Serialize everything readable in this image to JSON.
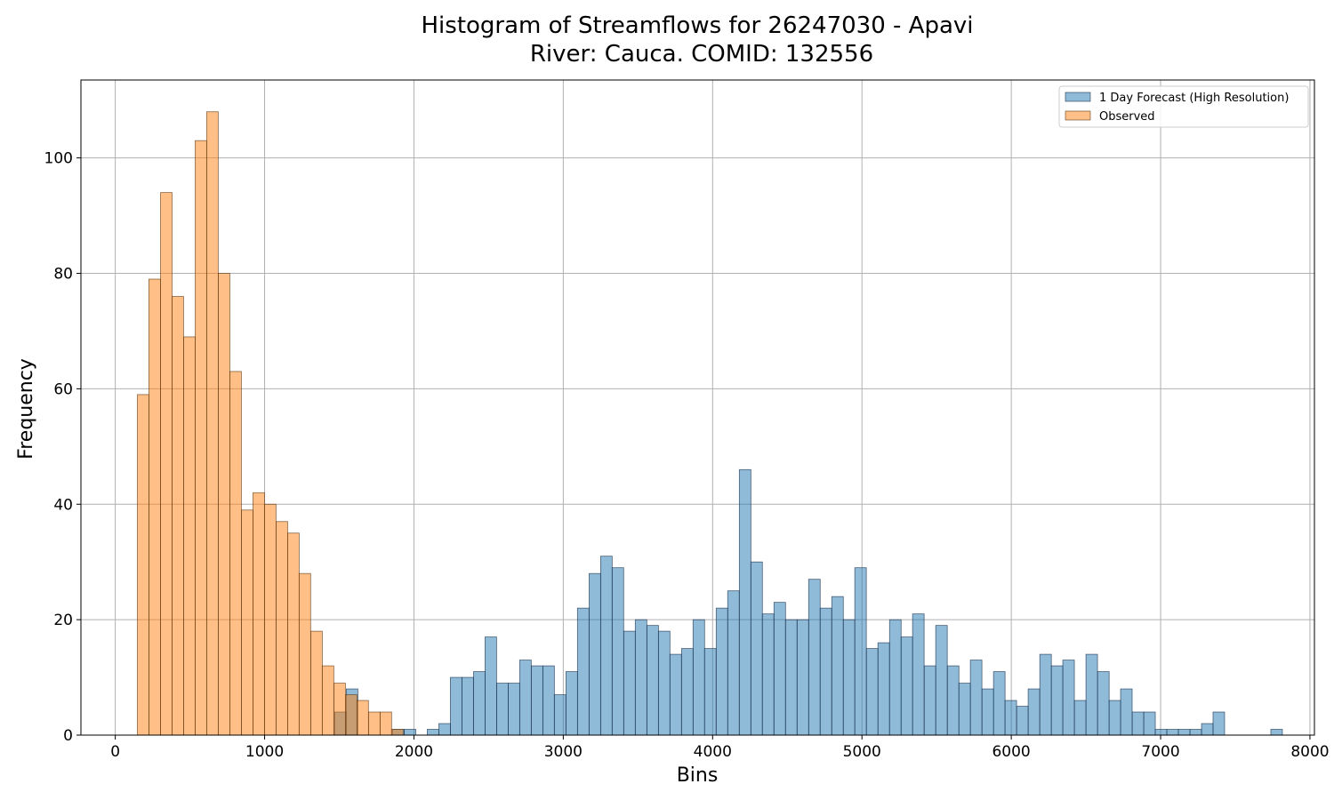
{
  "chart_data": {
    "type": "bar",
    "title": "Histogram of Streamflows for 26247030 - Apavi",
    "subtitle": "River: Cauca. COMID: 132556",
    "xlabel": "Bins",
    "ylabel": "Frequency",
    "xlim": [
      -230,
      8030
    ],
    "ylim": [
      0,
      113.5
    ],
    "x_ticks": [
      0,
      1000,
      2000,
      3000,
      4000,
      5000,
      6000,
      7000,
      8000
    ],
    "y_ticks": [
      0,
      20,
      40,
      60,
      80,
      100
    ],
    "grid": true,
    "legend_position": "top-right",
    "colors": {
      "forecast": "#1f77b4",
      "observed": "#ff7f0e"
    },
    "bin_width": 77.4,
    "series": [
      {
        "name": "1 Day Forecast (High Resolution)",
        "alpha": 0.5,
        "bins": [
          [
            1470,
            4
          ],
          [
            1547,
            8
          ],
          [
            1857,
            1
          ],
          [
            1935,
            1
          ],
          [
            2089,
            1
          ],
          [
            2167,
            2
          ],
          [
            2244,
            10
          ],
          [
            2321,
            10
          ],
          [
            2399,
            11
          ],
          [
            2476,
            17
          ],
          [
            2554,
            9
          ],
          [
            2631,
            9
          ],
          [
            2708,
            13
          ],
          [
            2786,
            12
          ],
          [
            2863,
            12
          ],
          [
            2940,
            7
          ],
          [
            3018,
            11
          ],
          [
            3095,
            22
          ],
          [
            3173,
            28
          ],
          [
            3250,
            31
          ],
          [
            3327,
            29
          ],
          [
            3405,
            18
          ],
          [
            3482,
            20
          ],
          [
            3560,
            19
          ],
          [
            3637,
            18
          ],
          [
            3714,
            14
          ],
          [
            3792,
            15
          ],
          [
            3869,
            20
          ],
          [
            3946,
            15
          ],
          [
            4024,
            22
          ],
          [
            4101,
            25
          ],
          [
            4179,
            46
          ],
          [
            4256,
            30
          ],
          [
            4333,
            21
          ],
          [
            4411,
            23
          ],
          [
            4488,
            20
          ],
          [
            4566,
            20
          ],
          [
            4643,
            27
          ],
          [
            4720,
            22
          ],
          [
            4798,
            24
          ],
          [
            4875,
            20
          ],
          [
            4952,
            29
          ],
          [
            5030,
            15
          ],
          [
            5107,
            16
          ],
          [
            5185,
            20
          ],
          [
            5262,
            17
          ],
          [
            5339,
            21
          ],
          [
            5417,
            12
          ],
          [
            5494,
            19
          ],
          [
            5572,
            12
          ],
          [
            5649,
            9
          ],
          [
            5726,
            13
          ],
          [
            5804,
            8
          ],
          [
            5881,
            11
          ],
          [
            5958,
            6
          ],
          [
            6036,
            5
          ],
          [
            6113,
            8
          ],
          [
            6191,
            14
          ],
          [
            6268,
            12
          ],
          [
            6345,
            13
          ],
          [
            6423,
            6
          ],
          [
            6500,
            14
          ],
          [
            6578,
            11
          ],
          [
            6655,
            6
          ],
          [
            6732,
            8
          ],
          [
            6810,
            4
          ],
          [
            6887,
            4
          ],
          [
            6964,
            1
          ],
          [
            7042,
            1
          ],
          [
            7119,
            1
          ],
          [
            7197,
            1
          ],
          [
            7274,
            2
          ],
          [
            7351,
            4
          ],
          [
            7738,
            1
          ]
        ]
      },
      {
        "name": "Observed",
        "alpha": 0.5,
        "bins": [
          [
            148,
            59
          ],
          [
            225,
            79
          ],
          [
            303,
            94
          ],
          [
            380,
            76
          ],
          [
            458,
            69
          ],
          [
            535,
            103
          ],
          [
            612,
            108
          ],
          [
            690,
            80
          ],
          [
            767,
            63
          ],
          [
            845,
            39
          ],
          [
            922,
            42
          ],
          [
            999,
            40
          ],
          [
            1077,
            37
          ],
          [
            1154,
            35
          ],
          [
            1231,
            28
          ],
          [
            1309,
            18
          ],
          [
            1386,
            12
          ],
          [
            1464,
            9
          ],
          [
            1541,
            7
          ],
          [
            1618,
            6
          ],
          [
            1696,
            4
          ],
          [
            1773,
            4
          ],
          [
            1850,
            1
          ]
        ]
      }
    ]
  }
}
